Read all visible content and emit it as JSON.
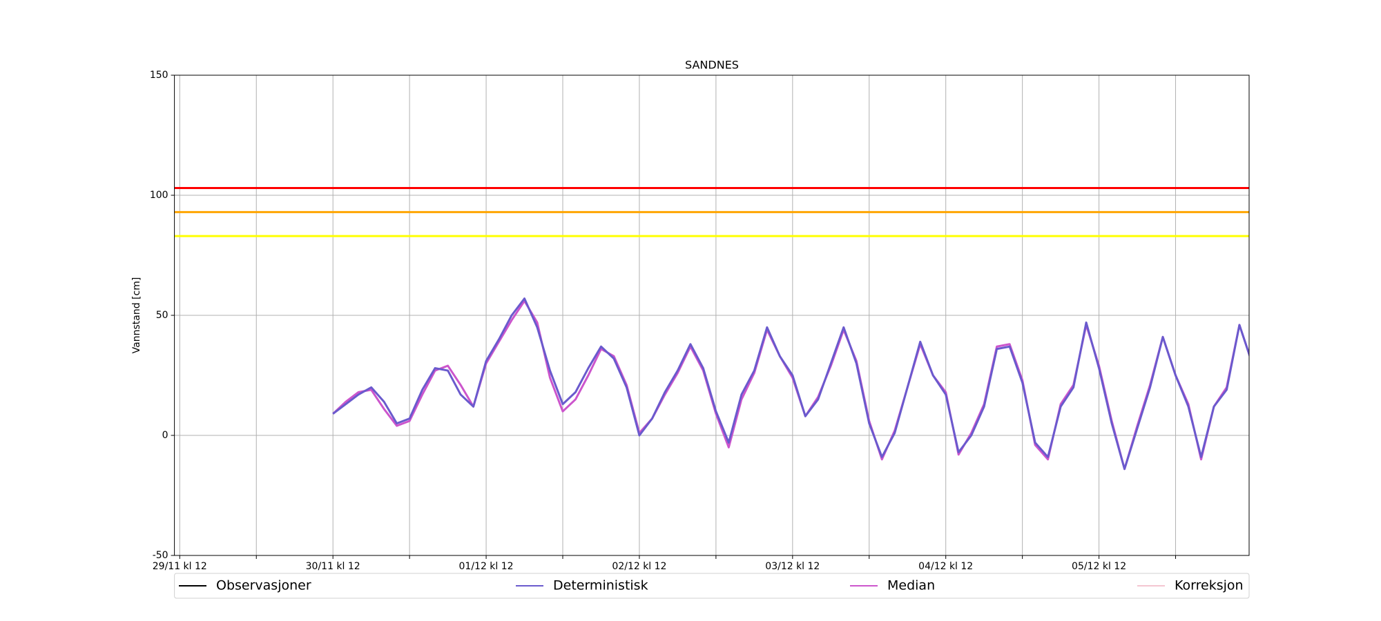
{
  "chart_data": {
    "type": "line",
    "title": "SANDNES",
    "y_label": "Vannstand [cm]",
    "categories": [
      "29/11 kl 12",
      null,
      null,
      null,
      null,
      null,
      null,
      null,
      null,
      null,
      null,
      null,
      "30/11 kl 12",
      null,
      null,
      null,
      null,
      null,
      null,
      null,
      null,
      null,
      null,
      null,
      "01/12 kl 12",
      null,
      null,
      null,
      null,
      null,
      null,
      null,
      null,
      null,
      null,
      null,
      "02/12 kl 12",
      null,
      null,
      null,
      null,
      null,
      null,
      null,
      null,
      null,
      null,
      null,
      "03/12 kl 12",
      null,
      null,
      null,
      null,
      null,
      null,
      null,
      null,
      null,
      null,
      null,
      "04/12 kl 12",
      null,
      null,
      null,
      null,
      null,
      null,
      null,
      null,
      null,
      null,
      null,
      "05/12 kl 12",
      null,
      null,
      null,
      null,
      null,
      null,
      null,
      null,
      null,
      null,
      null,
      null
    ],
    "series": [
      {
        "name": "Observasjoner",
        "color": "#000000",
        "values": [
          null,
          null,
          null,
          null,
          null,
          null,
          null,
          null,
          null,
          null,
          null,
          null,
          null,
          null,
          null,
          null,
          null,
          null,
          null,
          null,
          null,
          null,
          null,
          null,
          null,
          null,
          null,
          null,
          null,
          null,
          null,
          null,
          null,
          null,
          null,
          null,
          null,
          null,
          null,
          null,
          null,
          null,
          null,
          null,
          null,
          null,
          null,
          null,
          null,
          null,
          null,
          null,
          null,
          null,
          null,
          null,
          null,
          null,
          null,
          null,
          null,
          null,
          null,
          null,
          null,
          null,
          null,
          null,
          null,
          null,
          null,
          null,
          null,
          null,
          null,
          null,
          null,
          null,
          null,
          null,
          null,
          null,
          null,
          null,
          null
        ]
      },
      {
        "name": "Deterministisk",
        "color": "#6a5acd",
        "values": [
          null,
          null,
          null,
          null,
          null,
          null,
          null,
          null,
          null,
          null,
          null,
          null,
          9,
          13,
          17,
          20,
          14,
          5,
          7,
          19,
          28,
          27,
          17,
          12,
          31,
          40,
          50,
          57,
          45,
          27,
          13,
          18,
          28,
          37,
          32,
          20,
          0,
          7,
          18,
          27,
          38,
          28,
          10,
          -3,
          17,
          27,
          45,
          33,
          25,
          8,
          15,
          30,
          45,
          30,
          5,
          -9,
          1,
          20,
          39,
          25,
          17,
          -7,
          0,
          12,
          36,
          37,
          22,
          -3,
          -9,
          12,
          20,
          47,
          28,
          5,
          -14,
          3,
          20,
          41,
          25,
          12,
          -9,
          12,
          19,
          46,
          30
        ]
      },
      {
        "name": "Median",
        "color": "#cc55cc",
        "values": [
          null,
          null,
          null,
          null,
          null,
          null,
          null,
          null,
          null,
          null,
          null,
          null,
          9,
          14,
          18,
          19,
          11,
          4,
          6,
          17,
          27,
          29,
          21,
          12,
          30,
          39,
          48,
          56,
          47,
          24,
          10,
          15,
          25,
          36,
          33,
          21,
          1,
          7,
          17,
          26,
          37,
          27,
          9,
          -5,
          15,
          26,
          44,
          33,
          24,
          8,
          16,
          29,
          44,
          31,
          6,
          -10,
          2,
          20,
          38,
          25,
          18,
          -8,
          1,
          13,
          37,
          38,
          23,
          -4,
          -10,
          13,
          21,
          46,
          29,
          6,
          -14,
          4,
          21,
          41,
          25,
          13,
          -10,
          12,
          20,
          46,
          30
        ]
      },
      {
        "name": "Korreksjon",
        "color": "#f4c6d0",
        "values": [
          null,
          null,
          null,
          null,
          null,
          null,
          null,
          null,
          null,
          null,
          null,
          null,
          null,
          null,
          null,
          null,
          null,
          null,
          null,
          null,
          null,
          null,
          null,
          null,
          null,
          null,
          null,
          null,
          null,
          null,
          null,
          null,
          null,
          null,
          null,
          null,
          null,
          null,
          null,
          null,
          null,
          null,
          null,
          null,
          null,
          null,
          null,
          null,
          null,
          null,
          null,
          null,
          null,
          null,
          null,
          null,
          null,
          null,
          null,
          null,
          null,
          null,
          null,
          null,
          null,
          null,
          null,
          null,
          null,
          null,
          null,
          null,
          null,
          null,
          null,
          null,
          null,
          null,
          null,
          null,
          null,
          null,
          null,
          null,
          null
        ]
      }
    ],
    "reference_lines": [
      {
        "value": 103,
        "color": "#ff0000"
      },
      {
        "value": 93,
        "color": "#ffa500"
      },
      {
        "value": 83,
        "color": "#ffff00"
      }
    ],
    "ylim": [
      -50,
      150
    ],
    "yticks": [
      -50,
      0,
      50,
      100,
      150
    ],
    "grid": true,
    "legend": "bottom"
  }
}
